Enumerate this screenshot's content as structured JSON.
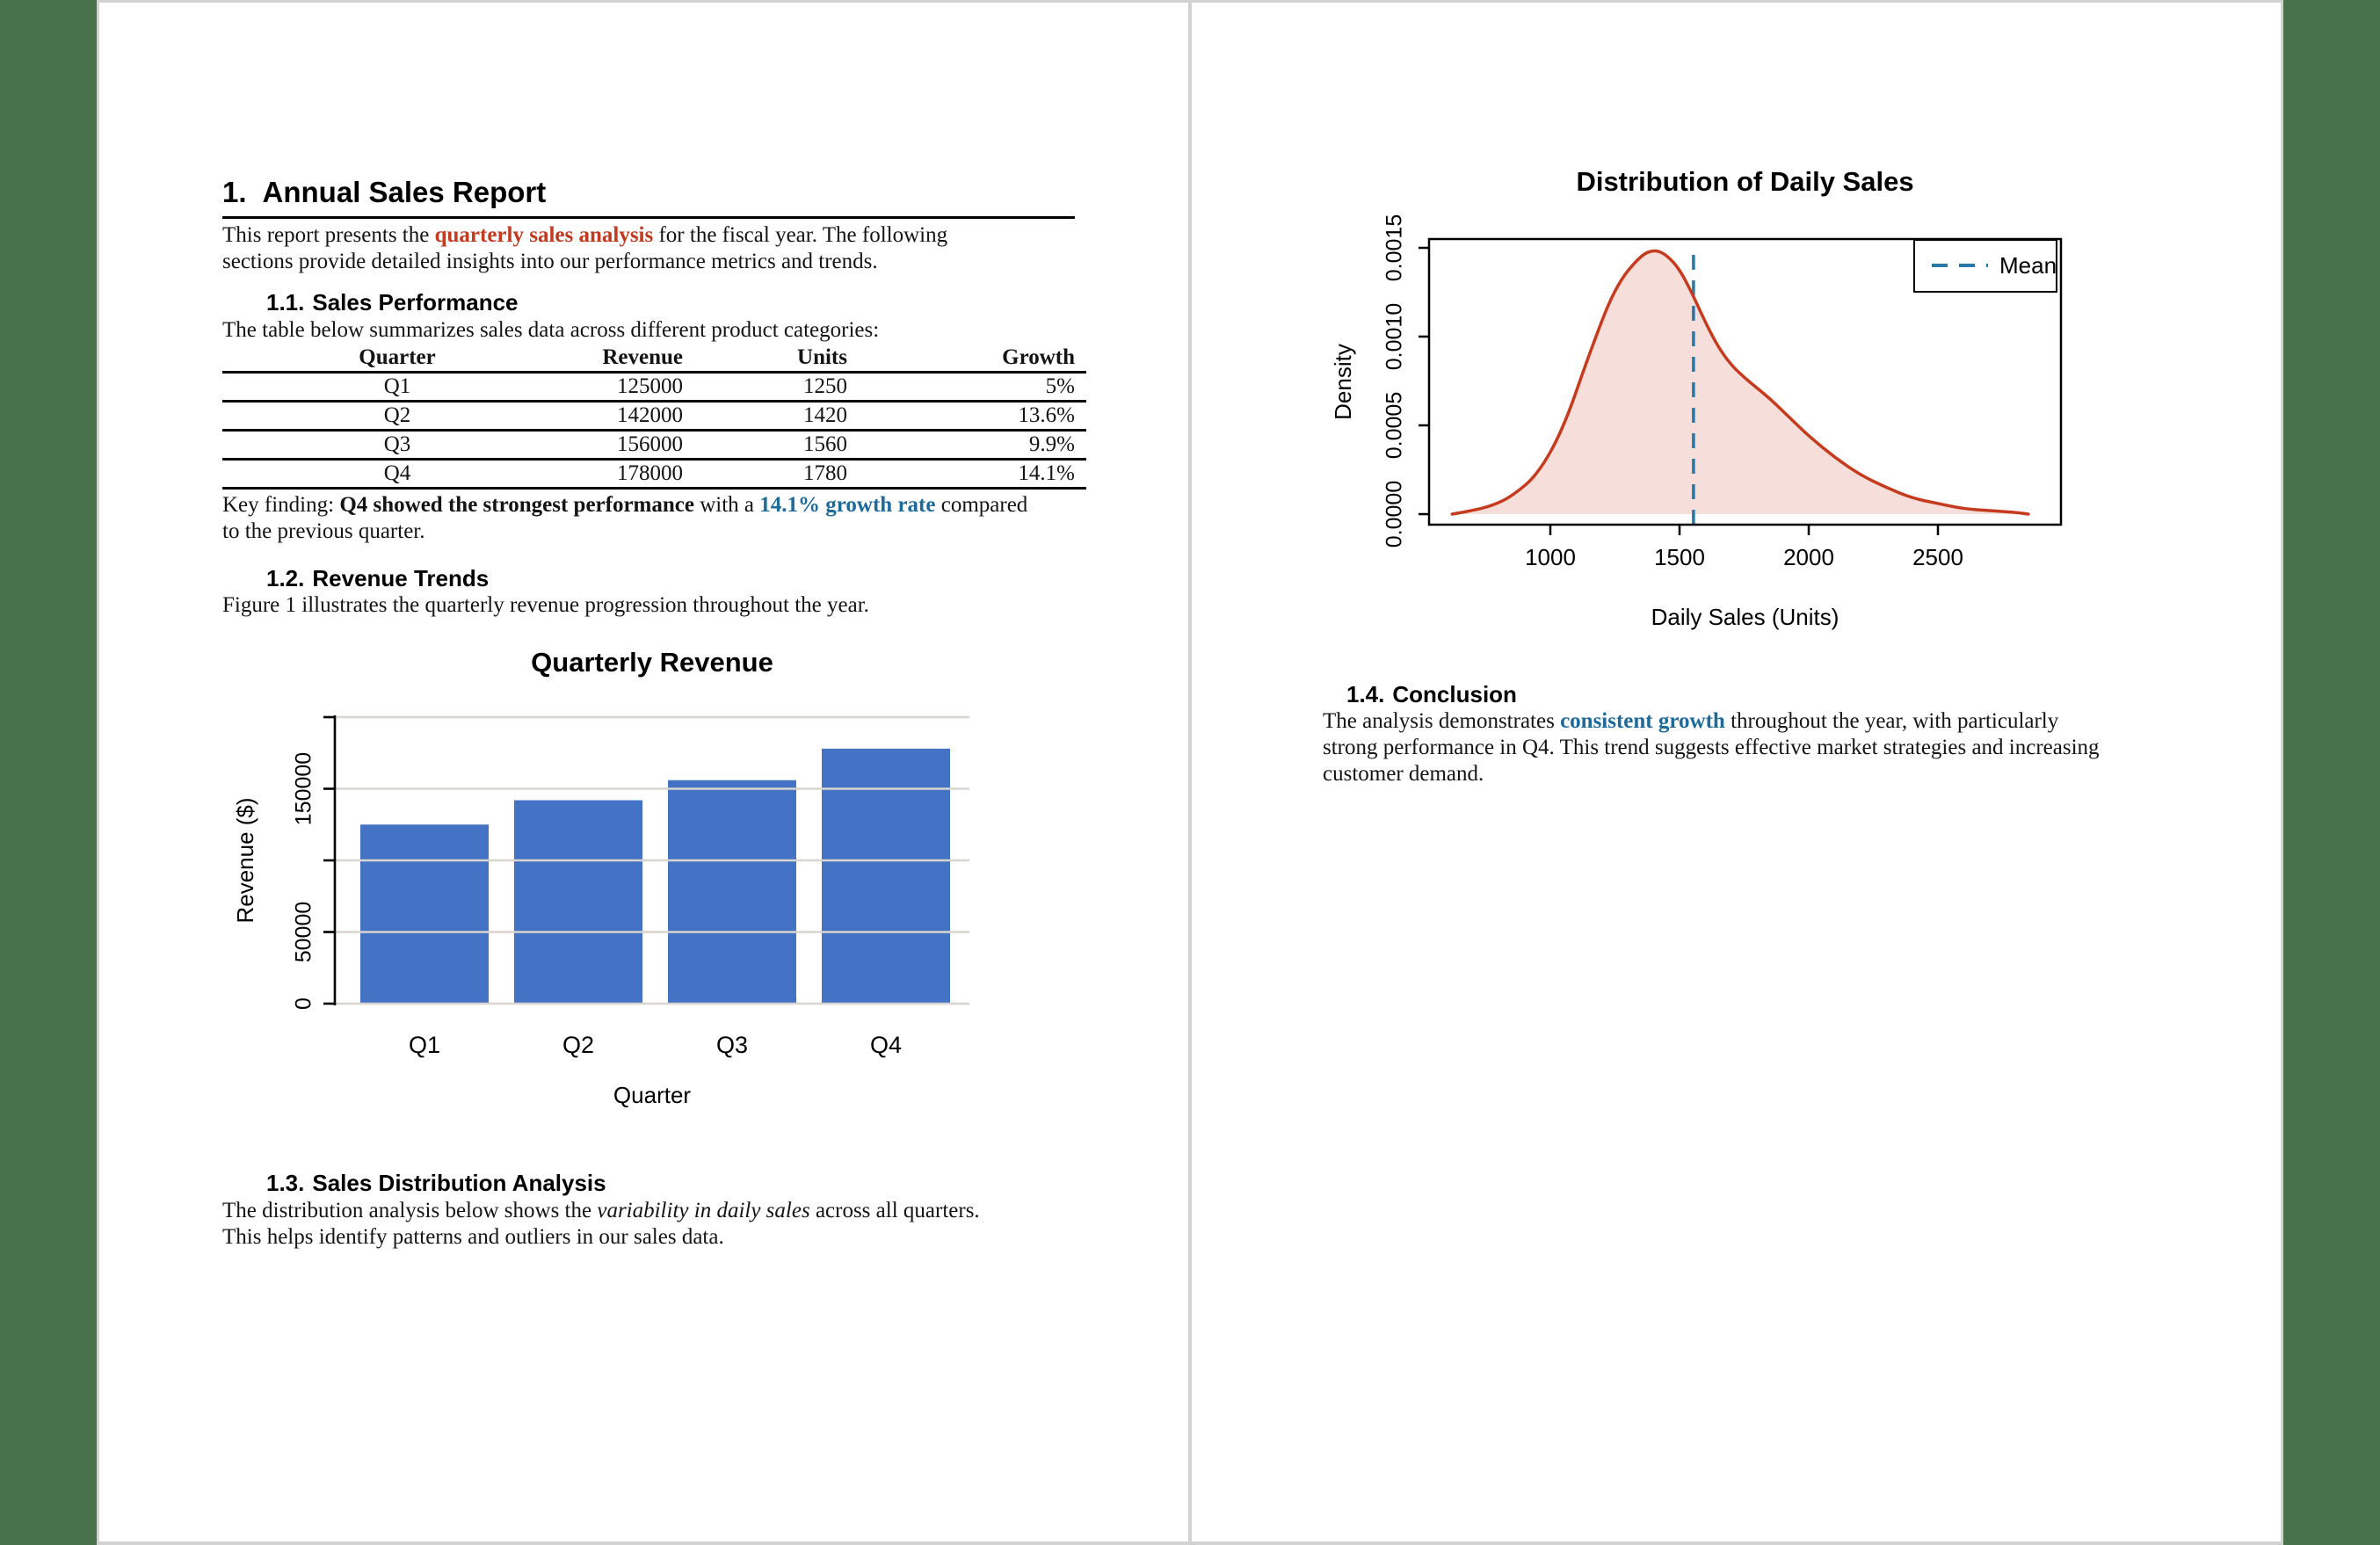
{
  "colors": {
    "accent_red": "#c23a1f",
    "accent_blue": "#1e6a9a",
    "bar_blue": "#4472c4",
    "density_line": "#c63b1d",
    "density_fill": "rgba(198,59,29,0.16)",
    "mean_line_blue": "#2878a8",
    "sidebar_green": "#47724c",
    "page_gap_gray": "#d2d2d2"
  },
  "page1": {
    "title": {
      "number": "1.",
      "text": "Annual Sales Report"
    },
    "intro": [
      {
        "t": "This report presents the ",
        "s": "n"
      },
      {
        "t": "quarterly sales analysis",
        "s": "br"
      },
      {
        "t": " for the fiscal year. The following",
        "s": "n"
      },
      {
        "t": "",
        "s": "nl"
      },
      {
        "t": "sections provide detailed insights into our performance metrics and trends.",
        "s": "n"
      }
    ],
    "s11": {
      "number": "1.1.",
      "text": "Sales Performance"
    },
    "table_intro": "The table below summarizes sales data across different product categories:",
    "table": {
      "headers": [
        "Quarter",
        "Revenue",
        "Units",
        "Growth"
      ],
      "rows": [
        [
          "Q1",
          "125000",
          "1250",
          "5%"
        ],
        [
          "Q2",
          "142000",
          "1420",
          "13.6%"
        ],
        [
          "Q3",
          "156000",
          "1560",
          "9.9%"
        ],
        [
          "Q4",
          "178000",
          "1780",
          "14.1%"
        ]
      ]
    },
    "key_finding": [
      {
        "t": "Key finding: ",
        "s": "n"
      },
      {
        "t": "Q4 showed the strongest performance",
        "s": "b"
      },
      {
        "t": " with a ",
        "s": "n"
      },
      {
        "t": "14.1% growth rate",
        "s": "bb"
      },
      {
        "t": " compared",
        "s": "n"
      },
      {
        "t": "",
        "s": "nl"
      },
      {
        "t": "to the previous quarter.",
        "s": "n"
      }
    ],
    "s12": {
      "number": "1.2.",
      "text": "Revenue Trends"
    },
    "fig_text": "Figure 1 illustrates the quarterly revenue progression throughout the year.",
    "s13": {
      "number": "1.3.",
      "text": "Sales Distribution Analysis"
    },
    "dist_text": [
      {
        "t": "The distribution analysis below shows the ",
        "s": "n"
      },
      {
        "t": "variability in daily sales",
        "s": "i"
      },
      {
        "t": " across all quarters.",
        "s": "n"
      },
      {
        "t": "",
        "s": "nl"
      },
      {
        "t": "This helps identify patterns and outliers in our sales data.",
        "s": "n"
      }
    ]
  },
  "page2": {
    "s14": {
      "number": "1.4.",
      "text": "Conclusion"
    },
    "conclusion": [
      {
        "t": "The analysis demonstrates ",
        "s": "n"
      },
      {
        "t": "consistent growth",
        "s": "bb"
      },
      {
        "t": " throughout the year, with particularly",
        "s": "n"
      },
      {
        "t": "",
        "s": "nl"
      },
      {
        "t": "strong performance in Q4. This trend suggests effective market strategies and increasing",
        "s": "n"
      },
      {
        "t": "",
        "s": "nl"
      },
      {
        "t": "customer demand.",
        "s": "n"
      }
    ]
  },
  "chart_data": [
    {
      "id": "bar-chart",
      "type": "bar",
      "title": "Quarterly Revenue",
      "xlabel": "Quarter",
      "ylabel": "Revenue ($)",
      "categories": [
        "Q1",
        "Q2",
        "Q3",
        "Q4"
      ],
      "values": [
        125000,
        142000,
        156000,
        178000
      ],
      "ylim": [
        0,
        200000
      ],
      "yticks": [
        {
          "v": 0,
          "label": "0"
        },
        {
          "v": 50000,
          "label": "50000"
        },
        {
          "v": 100000,
          "label": ""
        },
        {
          "v": 150000,
          "label": "150000"
        },
        {
          "v": 200000,
          "label": ""
        }
      ],
      "grid": true,
      "legend": null,
      "bar_color": "#4472c4"
    },
    {
      "id": "density-chart",
      "type": "area",
      "title": "Distribution of Daily Sales",
      "xlabel": "Daily Sales (Units)",
      "ylabel": "Density",
      "xticks": [
        1000,
        1500,
        2000,
        2500
      ],
      "yticks": [
        "0.0000",
        "0.0005",
        "0.0010",
        "0.0015"
      ],
      "xlim": [
        530,
        2980
      ],
      "ylim": [
        0,
        0.00155
      ],
      "mean_line": {
        "x": 1554,
        "label": "Mean",
        "style": "dashed",
        "color": "#2878a8"
      },
      "legend": {
        "position": "top-right",
        "entries": [
          "Mean"
        ]
      },
      "line_color": "#c63b1d",
      "fill_color": "rgba(198,59,29,0.16)",
      "points": [
        [
          620,
          0.0
        ],
        [
          700,
          2e-05
        ],
        [
          780,
          5e-05
        ],
        [
          850,
          0.0001
        ],
        [
          950,
          0.00022
        ],
        [
          1050,
          0.00048
        ],
        [
          1150,
          0.0009
        ],
        [
          1250,
          0.00128
        ],
        [
          1350,
          0.00146
        ],
        [
          1405,
          0.00149
        ],
        [
          1450,
          0.00146
        ],
        [
          1500,
          0.00138
        ],
        [
          1550,
          0.00124
        ],
        [
          1600,
          0.00108
        ],
        [
          1650,
          0.00094
        ],
        [
          1700,
          0.00084
        ],
        [
          1750,
          0.00077
        ],
        [
          1800,
          0.00071
        ],
        [
          1850,
          0.00065
        ],
        [
          1900,
          0.00058
        ],
        [
          1950,
          0.00051
        ],
        [
          2000,
          0.00044
        ],
        [
          2100,
          0.00032
        ],
        [
          2200,
          0.00022
        ],
        [
          2300,
          0.00015
        ],
        [
          2400,
          9e-05
        ],
        [
          2500,
          6e-05
        ],
        [
          2600,
          3e-05
        ],
        [
          2700,
          2e-05
        ],
        [
          2800,
          1e-05
        ],
        [
          2850,
          0.0
        ]
      ]
    }
  ]
}
